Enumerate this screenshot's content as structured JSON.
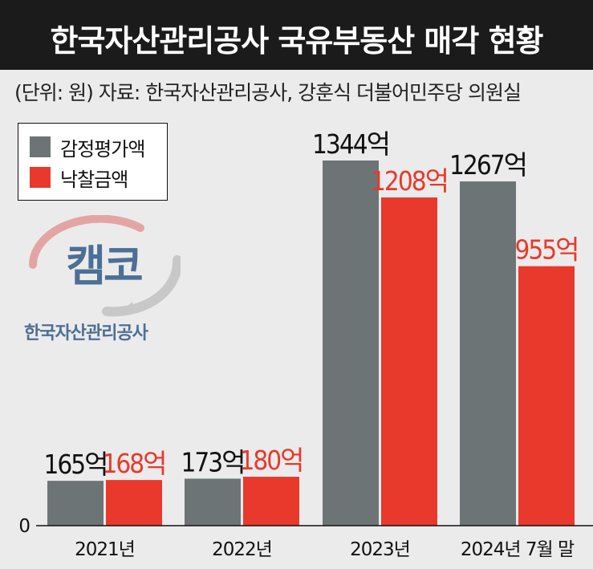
{
  "header": {
    "title": "한국자산관리공사 국유부동산 매각 현황",
    "source": "(단위: 원) 자료: 한국자산관리공사, 강훈식 더불어민주당 의원실"
  },
  "logo": {
    "mark_text": "캠코",
    "subtitle": "한국자산관리공사"
  },
  "colors": {
    "appraisal": "#6d7476",
    "winning_bid": "#e8392c",
    "background": "#ebebeb",
    "title_bar": "#1b1b1b"
  },
  "chart_data": {
    "type": "bar",
    "categories": [
      "2021년",
      "2022년",
      "2023년",
      "2024년 7월 말"
    ],
    "unit": "억",
    "series": [
      {
        "name": "감정평가액",
        "values": [
          165,
          173,
          1344,
          1267
        ],
        "labels": [
          "165억",
          "173억",
          "1344억",
          "1267억"
        ]
      },
      {
        "name": "낙찰금액",
        "values": [
          168,
          180,
          1208,
          955
        ],
        "labels": [
          "168억",
          "180억",
          "1208억",
          "955억"
        ]
      }
    ],
    "yticks": [
      "0"
    ],
    "ylim": [
      0,
      1600
    ],
    "legend": "top-left",
    "grid": false
  }
}
